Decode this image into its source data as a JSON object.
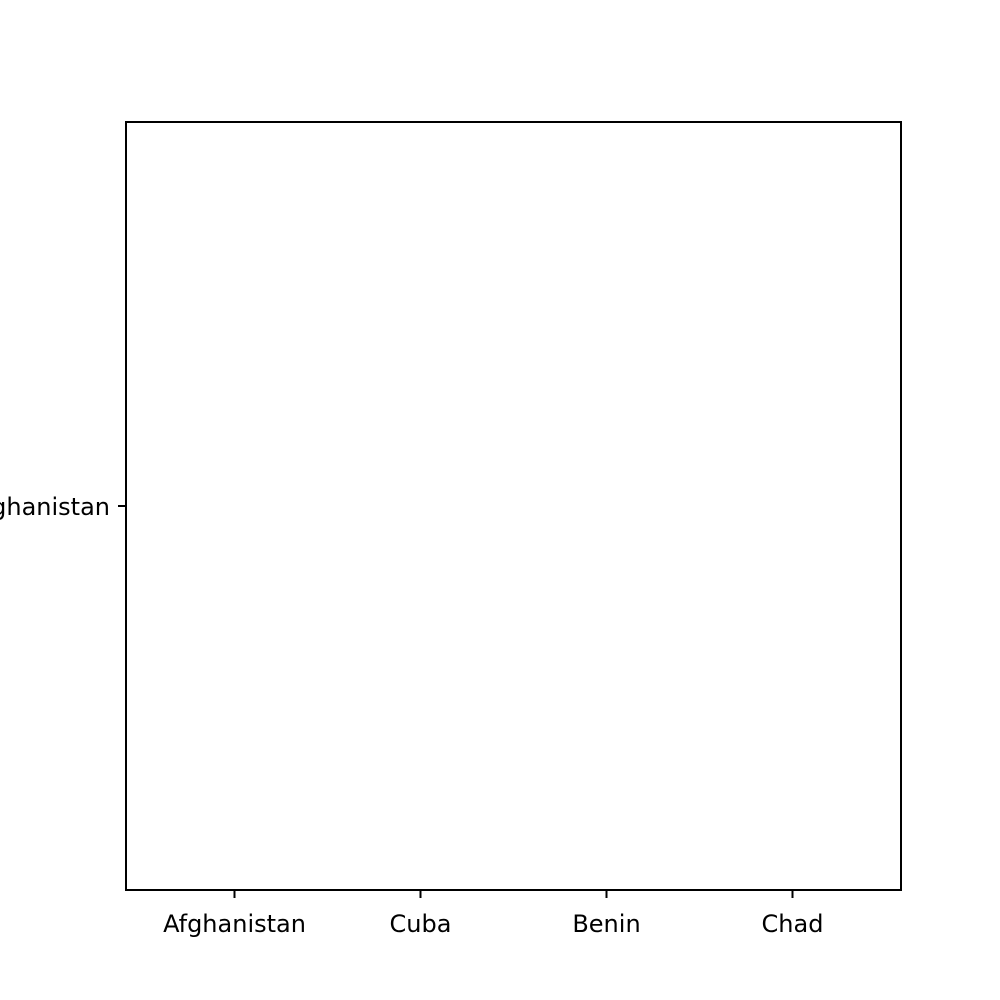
{
  "chart_data": {
    "type": "heatmap",
    "x_categories": [
      "Afghanistan",
      "Cuba",
      "Benin",
      "Chad"
    ],
    "y_categories": [
      "Afghanistan"
    ],
    "values": [],
    "title": "",
    "xlabel": "",
    "ylabel": "",
    "grid": false,
    "legend": "none",
    "colors": {
      "axis": "#000000",
      "background": "#ffffff"
    }
  }
}
